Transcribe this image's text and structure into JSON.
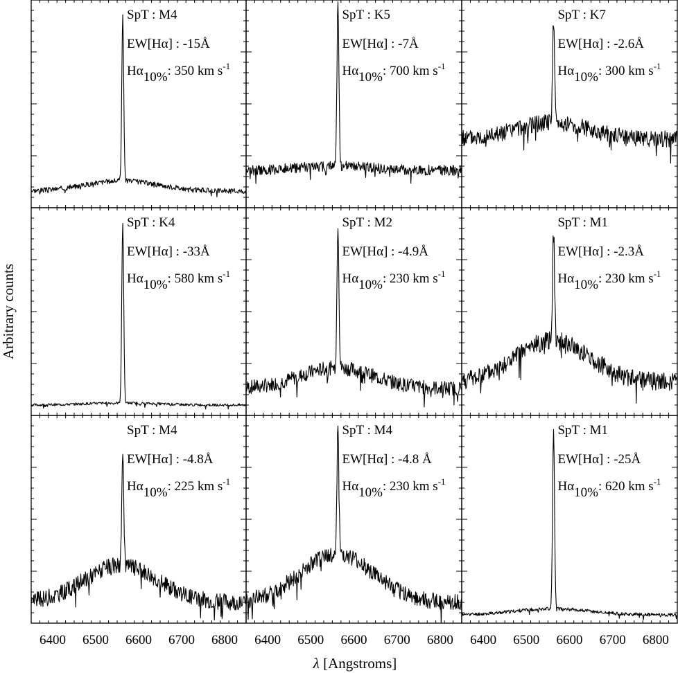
{
  "chart_data": {
    "type": "line",
    "layout": "3x3 grid of spectrum panels",
    "xlabel": "λ [Angstroms]",
    "ylabel": "Arbitrary counts",
    "xlim": [
      6350,
      6850
    ],
    "xticks": [
      6400,
      6500,
      6600,
      6700,
      6800
    ],
    "xtick_labels": [
      "6400",
      "6500",
      "6600",
      "6700",
      "6800"
    ],
    "grid": false,
    "line_color": "#000000",
    "panels": [
      {
        "spt": "SpT : M4",
        "ew": "EW[Hα] : -15Å",
        "ha10_value": ": 350 km s",
        "peak": 0.92,
        "continuum": 0.08,
        "hump": 0.05,
        "noise": 0.012,
        "shift": 0
      },
      {
        "spt": "SpT : K5",
        "ew": "EW[Hα] : -7Å",
        "ha10_value": ": 700 km s",
        "peak": 1.0,
        "continuum": 0.18,
        "hump": 0.02,
        "noise": 0.025,
        "shift": 0
      },
      {
        "spt": "SpT : K7",
        "ew": "EW[Hα] : -2.6Å",
        "ha10_value": ": 300 km s",
        "peak": 0.9,
        "continuum": 0.33,
        "hump": 0.08,
        "noise": 0.04,
        "shift": 0
      },
      {
        "spt": "SpT : K4",
        "ew": "EW[Hα] : -33Å",
        "ha10_value": ": 580 km s",
        "peak": 0.93,
        "continuum": 0.05,
        "hump": 0.01,
        "noise": 0.006,
        "shift": 0
      },
      {
        "spt": "SpT : M2",
        "ew": "EW[Hα] : -4.9Å",
        "ha10_value": ": 230 km s",
        "peak": 0.93,
        "continuum": 0.13,
        "hump": 0.1,
        "noise": 0.035,
        "shift": 0
      },
      {
        "spt": "SpT : M1",
        "ew": "EW[Hα] : -2.3Å",
        "ha10_value": ": 230 km s",
        "peak": 0.93,
        "continuum": 0.16,
        "hump": 0.2,
        "noise": 0.045,
        "shift": 0
      },
      {
        "spt": "SpT : M4",
        "ew": "EW[Hα] : -4.8Å",
        "ha10_value": ": 225 km s",
        "peak": 0.8,
        "continuum": 0.1,
        "hump": 0.18,
        "noise": 0.04,
        "shift": 0
      },
      {
        "spt": "SpT : M4",
        "ew": "EW[Hα] : -4.8 Å",
        "ha10_value": ":  230 km s",
        "peak": 0.96,
        "continuum": 0.1,
        "hump": 0.23,
        "noise": 0.04,
        "shift": 0
      },
      {
        "spt": "SpT : M1",
        "ew": "EW[Hα] :  -25Å",
        "ha10_value": ":  620 km s",
        "peak": 0.93,
        "continuum": 0.04,
        "hump": 0.03,
        "noise": 0.008,
        "shift": 0
      }
    ],
    "ha_symbol": "Hα",
    "ha_subscript": "10%",
    "unit_exponent": "-1",
    "line_center": 6563
  }
}
